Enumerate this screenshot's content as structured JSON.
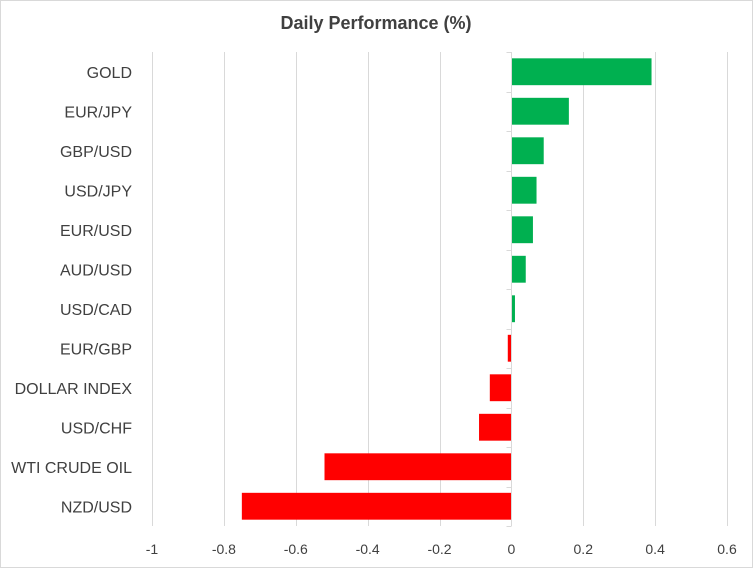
{
  "chart_data": {
    "type": "bar",
    "orientation": "horizontal",
    "title": "Daily Performance  (%)",
    "xlabel": "",
    "ylabel": "",
    "categories": [
      "GOLD",
      "EUR/JPY",
      "GBP/USD",
      "USD/JPY",
      "EUR/USD",
      "AUD/USD",
      "USD/CAD",
      "EUR/GBP",
      "DOLLAR INDEX",
      "USD/CHF",
      "WTI CRUDE OIL",
      "NZD/USD"
    ],
    "values": [
      0.39,
      0.16,
      0.09,
      0.07,
      0.06,
      0.04,
      0.01,
      -0.01,
      -0.06,
      -0.09,
      -0.52,
      -0.75
    ],
    "xlim": [
      -1,
      0.6
    ],
    "xticks": [
      -1,
      -0.8,
      -0.6,
      -0.4,
      -0.2,
      0,
      0.2,
      0.4,
      0.6
    ],
    "xtick_labels": [
      "-1",
      "-0.8",
      "-0.6",
      "-0.4",
      "-0.2",
      "0",
      "0.2",
      "0.4",
      "0.6"
    ],
    "grid": "vertical",
    "legend": "none",
    "colors": {
      "positive": "#00b050",
      "negative": "#ff0000",
      "gridline": "#d9d9d9",
      "text": "#404040"
    }
  }
}
